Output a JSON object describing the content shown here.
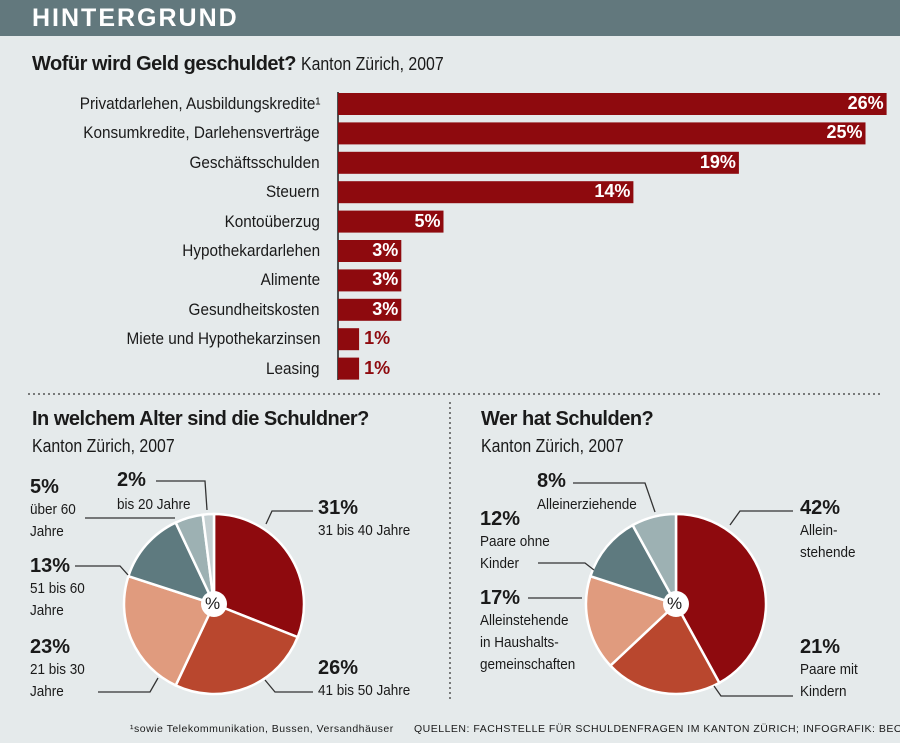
{
  "header": {
    "label": "HINTERGRUND"
  },
  "colors": {
    "header": "#62787d",
    "background": "#e5eaeb",
    "bar": "#8e0a0e",
    "pie": [
      "#8e0a0e",
      "#b9472e",
      "#e09b7e",
      "#5e7a7f",
      "#9db1b3",
      "#c5d0d2"
    ]
  },
  "chart_data": [
    {
      "type": "bar",
      "orientation": "horizontal",
      "title": "Wofür wird Geld geschuldet?",
      "subtitle": "Kanton Zürich, 2007",
      "categories": [
        "Privatdarlehen, Ausbildungskredite¹",
        "Konsumkredite, Darlehensverträge",
        "Geschäftsschulden",
        "Steuern",
        "Kontoüberzug",
        "Hypothekardarlehen",
        "Alimente",
        "Gesundheitskosten",
        "Miete und Hypothekarzinsen",
        "Leasing"
      ],
      "values": [
        26,
        25,
        19,
        14,
        5,
        3,
        3,
        3,
        1,
        1
      ],
      "labels": [
        "26%",
        "25%",
        "19%",
        "14%",
        "5%",
        "3%",
        "3%",
        "3%",
        "1%",
        "1%"
      ],
      "unit": "%"
    },
    {
      "type": "pie",
      "title": "In welchem Alter sind die Schuldner?",
      "subtitle": "Kanton Zürich, 2007",
      "center_label": "%",
      "slices": [
        {
          "label": "31 bis 40 Jahre",
          "value": 31,
          "text": "31%"
        },
        {
          "label": "41 bis 50 Jahre",
          "value": 26,
          "text": "26%"
        },
        {
          "label": "21 bis 30\nJahre",
          "value": 23,
          "text": "23%"
        },
        {
          "label": "51 bis 60\nJahre",
          "value": 13,
          "text": "13%"
        },
        {
          "label": "über 60\nJahre",
          "value": 5,
          "text": "5%"
        },
        {
          "label": "bis 20 Jahre",
          "value": 2,
          "text": "2%"
        }
      ]
    },
    {
      "type": "pie",
      "title": "Wer hat Schulden?",
      "subtitle": "Kanton Zürich, 2007",
      "center_label": "%",
      "slices": [
        {
          "label": "Allein-\nstehende",
          "value": 42,
          "text": "42%"
        },
        {
          "label": "Paare mit\nKindern",
          "value": 21,
          "text": "21%"
        },
        {
          "label": "Alleinstehende\nin Haushalts-\ngemeinschaften",
          "value": 17,
          "text": "17%"
        },
        {
          "label": "Paare ohne\nKinder",
          "value": 12,
          "text": "12%"
        },
        {
          "label": "Alleinerziehende",
          "value": 8,
          "text": "8%"
        }
      ]
    }
  ],
  "footer": {
    "note": "¹sowie Telekommunikation, Bussen, Versandhäuser",
    "source": "QUELLEN: FACHSTELLE FÜR SCHULDENFRAGEN IM KANTON ZÜRICH; INFOGRAFIK: BEO/DR"
  }
}
